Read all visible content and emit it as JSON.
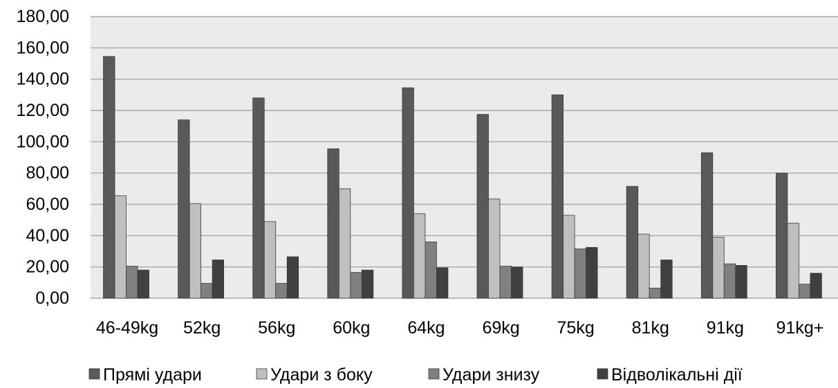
{
  "chart_data": {
    "type": "bar",
    "title": "",
    "xlabel": "",
    "ylabel": "",
    "ylim": [
      0,
      180
    ],
    "yticks": [
      0,
      20,
      40,
      60,
      80,
      100,
      120,
      140,
      160,
      180
    ],
    "ytick_labels": [
      "0,00",
      "20,00",
      "40,00",
      "60,00",
      "80,00",
      "100,00",
      "120,00",
      "140,00",
      "160,00",
      "180,00"
    ],
    "grid": true,
    "legend_position": "bottom",
    "categories": [
      "46-49kg",
      "52kg",
      "56kg",
      "60kg",
      "64kg",
      "69kg",
      "75kg",
      "81kg",
      "91kg",
      "91kg+"
    ],
    "series": [
      {
        "name": "Прямі удари",
        "color": "#595959",
        "values": [
          154.5,
          114,
          128,
          95.5,
          134.5,
          117.5,
          130,
          71.5,
          93,
          80
        ]
      },
      {
        "name": "Удари з боку",
        "color": "#bfbfbf",
        "values": [
          65.5,
          60.5,
          49,
          70,
          54,
          63.5,
          53,
          41,
          39,
          48
        ]
      },
      {
        "name": "Удари знизу",
        "color": "#808080",
        "values": [
          20.5,
          9.5,
          9.5,
          16.5,
          36,
          20.5,
          31.5,
          6.5,
          22,
          9
        ]
      },
      {
        "name": "Відволікальні дії",
        "color": "#404040",
        "values": [
          18,
          24.5,
          26.5,
          18,
          19.5,
          20,
          32.5,
          24.5,
          21,
          16
        ]
      }
    ],
    "plot_background": "#ebebeb",
    "gridline_color": "#9a9a9a"
  }
}
